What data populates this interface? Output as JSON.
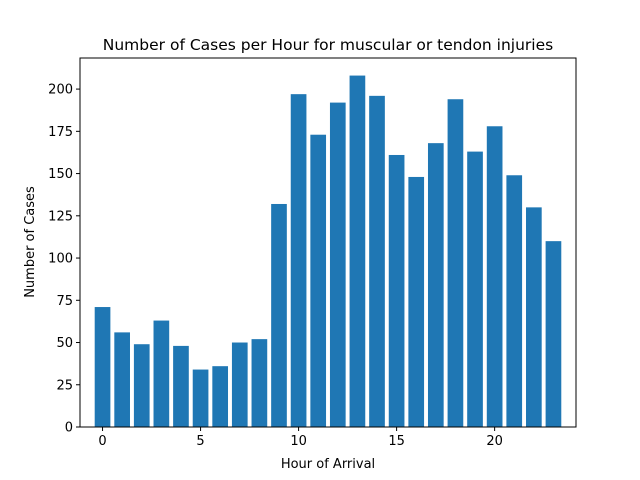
{
  "chart_data": {
    "type": "bar",
    "title": "Number of Cases per Hour for muscular or tendon injuries",
    "xlabel": "Hour of Arrival",
    "ylabel": "Number of Cases",
    "x": [
      0,
      1,
      2,
      3,
      4,
      5,
      6,
      7,
      8,
      9,
      10,
      11,
      12,
      13,
      14,
      15,
      16,
      17,
      18,
      19,
      20,
      21,
      22,
      23
    ],
    "values": [
      71,
      56,
      49,
      63,
      48,
      34,
      36,
      50,
      52,
      132,
      197,
      173,
      192,
      208,
      196,
      161,
      148,
      168,
      194,
      163,
      178,
      149,
      130,
      110
    ],
    "xlim": [
      -1.15,
      24.15
    ],
    "ylim": [
      0,
      218.4
    ],
    "xticks": [
      0,
      5,
      10,
      15,
      20
    ],
    "yticks": [
      0,
      25,
      50,
      75,
      100,
      125,
      150,
      175,
      200
    ],
    "bar_color": "#1f77b4",
    "grid": false,
    "legend": "none"
  }
}
